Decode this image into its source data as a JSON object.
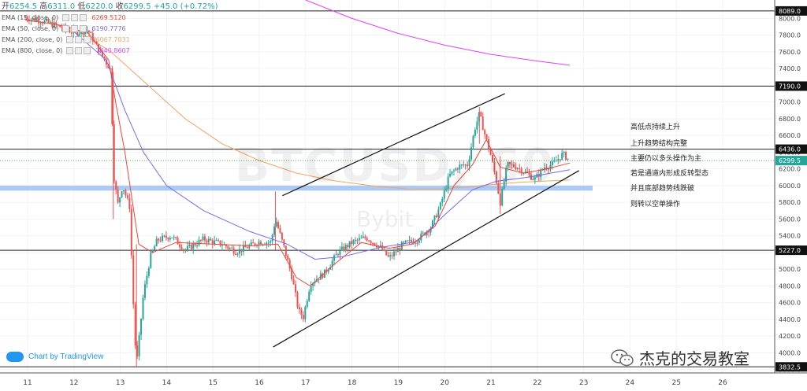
{
  "header": {
    "open_label": "开",
    "open_value": "6254.5",
    "high_label": "高",
    "high_value": "6311.0",
    "low_label": "低",
    "low_value": "6220.0",
    "close_label": "收",
    "close_value": "6299.5",
    "change": "+45.0 (+0.72%)"
  },
  "legend": [
    {
      "label": "EMA (15, close, 0)",
      "value": "6269.5120",
      "color": "#f44336"
    },
    {
      "label": "EMA (50, close, 0)",
      "value": "6190.7776",
      "color": "#7b68ee"
    },
    {
      "label": "EMA (200, close, 0)",
      "value": "6067.7031",
      "color": "#f4a460"
    },
    {
      "label": "EMA (800, close, 0)",
      "value": "7440.8607",
      "color": "#e040fb"
    }
  ],
  "watermark_symbol": "BTCUSD, 60",
  "watermark_exchange": "Bybit",
  "brand_text": "Chart by TradingView",
  "author_watermark": "杰克的交易教室",
  "annotations": [
    "高低点持续上升",
    "上升趋势结构完整",
    "主要仍以多头操作为主",
    "若是通道内形成反转型态",
    "并且底部趋势线跌破",
    "则转以空单操作"
  ],
  "colors": {
    "up": "#26a69a",
    "down": "#ef5350",
    "support_band": "#9ec1f0",
    "price_line": "#4caf50"
  },
  "chart_data": {
    "type": "candlestick",
    "symbol": "BTCUSD",
    "interval": "60",
    "x_axis_days": [
      "11",
      "12",
      "13",
      "14",
      "15",
      "16",
      "17",
      "18",
      "19",
      "20",
      "21",
      "22",
      "23",
      "24",
      "25",
      "26"
    ],
    "y_ticks": [
      3800,
      4000,
      4200,
      4400,
      4600,
      4800,
      5000,
      5200,
      5400,
      5600,
      5800,
      6000,
      6200,
      6400,
      6600,
      6800,
      7000,
      7200,
      7400,
      7600,
      7800,
      8000
    ],
    "ylim": [
      3760,
      8220
    ],
    "horizontal_levels": [
      {
        "value": 8089.0,
        "label": "8089.0"
      },
      {
        "value": 7190.0,
        "label": "7190.0"
      },
      {
        "value": 6436.0,
        "label": "6436.0"
      },
      {
        "value": 5227.0,
        "label": "5227.0"
      },
      {
        "value": 3832.5,
        "label": "3832.5"
      }
    ],
    "current_price": {
      "value": 6299.5,
      "label": "6299.5"
    },
    "support_zone": [
      5940,
      6000
    ],
    "channel_upper": [
      {
        "day": 16.5,
        "price": 5880
      },
      {
        "day": 21.3,
        "price": 7100
      }
    ],
    "channel_lower": [
      {
        "day": 16.3,
        "price": 4070
      },
      {
        "day": 22.9,
        "price": 6180
      }
    ],
    "price_path": [
      [
        10.95,
        8010
      ],
      [
        11.3,
        7970
      ],
      [
        11.7,
        7900
      ],
      [
        12.0,
        7830
      ],
      [
        12.3,
        7860
      ],
      [
        12.6,
        7560
      ],
      [
        12.8,
        7380
      ],
      [
        12.85,
        6150
      ],
      [
        12.95,
        5780
      ],
      [
        13.05,
        6000
      ],
      [
        13.2,
        5750
      ],
      [
        13.3,
        4350
      ],
      [
        13.35,
        3840
      ],
      [
        13.5,
        4700
      ],
      [
        13.65,
        5150
      ],
      [
        13.8,
        5350
      ],
      [
        14.1,
        5400
      ],
      [
        14.4,
        5230
      ],
      [
        14.8,
        5360
      ],
      [
        15.2,
        5300
      ],
      [
        15.5,
        5210
      ],
      [
        15.8,
        5280
      ],
      [
        16.0,
        5330
      ],
      [
        16.25,
        5320
      ],
      [
        16.35,
        5600
      ],
      [
        16.55,
        5230
      ],
      [
        16.7,
        4920
      ],
      [
        16.85,
        4500
      ],
      [
        16.95,
        4430
      ],
      [
        17.1,
        4830
      ],
      [
        17.4,
        4950
      ],
      [
        17.7,
        5200
      ],
      [
        18.0,
        5320
      ],
      [
        18.3,
        5380
      ],
      [
        18.6,
        5270
      ],
      [
        18.8,
        5130
      ],
      [
        19.1,
        5300
      ],
      [
        19.4,
        5350
      ],
      [
        19.7,
        5500
      ],
      [
        19.9,
        5750
      ],
      [
        20.1,
        6120
      ],
      [
        20.3,
        6230
      ],
      [
        20.5,
        6250
      ],
      [
        20.65,
        6680
      ],
      [
        20.75,
        6860
      ],
      [
        20.85,
        6650
      ],
      [
        21.0,
        6350
      ],
      [
        21.1,
        6100
      ],
      [
        21.2,
        5800
      ],
      [
        21.35,
        6250
      ],
      [
        21.55,
        6230
      ],
      [
        21.75,
        6150
      ],
      [
        21.95,
        6080
      ],
      [
        22.15,
        6220
      ],
      [
        22.35,
        6260
      ],
      [
        22.55,
        6380
      ],
      [
        22.7,
        6300
      ]
    ],
    "ema_15": [
      [
        10.95,
        7980
      ],
      [
        11.6,
        7930
      ],
      [
        12.3,
        7830
      ],
      [
        12.75,
        7500
      ],
      [
        12.9,
        7000
      ],
      [
        13.1,
        6400
      ],
      [
        13.4,
        5300
      ],
      [
        13.7,
        5200
      ],
      [
        14.2,
        5320
      ],
      [
        15.0,
        5300
      ],
      [
        15.8,
        5280
      ],
      [
        16.4,
        5300
      ],
      [
        16.8,
        4900
      ],
      [
        17.1,
        4800
      ],
      [
        17.6,
        5050
      ],
      [
        18.2,
        5320
      ],
      [
        18.8,
        5250
      ],
      [
        19.3,
        5300
      ],
      [
        19.8,
        5520
      ],
      [
        20.2,
        6000
      ],
      [
        20.6,
        6250
      ],
      [
        20.9,
        6550
      ],
      [
        21.2,
        6220
      ],
      [
        21.7,
        6150
      ],
      [
        22.2,
        6200
      ],
      [
        22.7,
        6270
      ]
    ],
    "ema_50": [
      [
        12.0,
        7840
      ],
      [
        12.7,
        7500
      ],
      [
        13.1,
        6900
      ],
      [
        13.5,
        6400
      ],
      [
        14.0,
        6000
      ],
      [
        14.8,
        5700
      ],
      [
        15.8,
        5450
      ],
      [
        16.6,
        5300
      ],
      [
        17.2,
        5120
      ],
      [
        17.8,
        5150
      ],
      [
        18.6,
        5260
      ],
      [
        19.4,
        5330
      ],
      [
        20.0,
        5650
      ],
      [
        20.6,
        5950
      ],
      [
        21.1,
        6050
      ],
      [
        21.8,
        6100
      ],
      [
        22.7,
        6190
      ]
    ],
    "ema_200": [
      [
        12.0,
        7880
      ],
      [
        12.8,
        7600
      ],
      [
        13.6,
        7200
      ],
      [
        14.4,
        6800
      ],
      [
        15.2,
        6500
      ],
      [
        16.0,
        6300
      ],
      [
        16.8,
        6150
      ],
      [
        17.6,
        6060
      ],
      [
        18.4,
        6000
      ],
      [
        19.2,
        5960
      ],
      [
        20.0,
        5960
      ],
      [
        20.8,
        6000
      ],
      [
        21.6,
        6040
      ],
      [
        22.7,
        6068
      ]
    ],
    "ema_800": [
      [
        17.0,
        8220
      ],
      [
        18.0,
        8000
      ],
      [
        19.0,
        7820
      ],
      [
        20.0,
        7680
      ],
      [
        21.0,
        7570
      ],
      [
        22.0,
        7490
      ],
      [
        22.7,
        7440
      ]
    ]
  }
}
